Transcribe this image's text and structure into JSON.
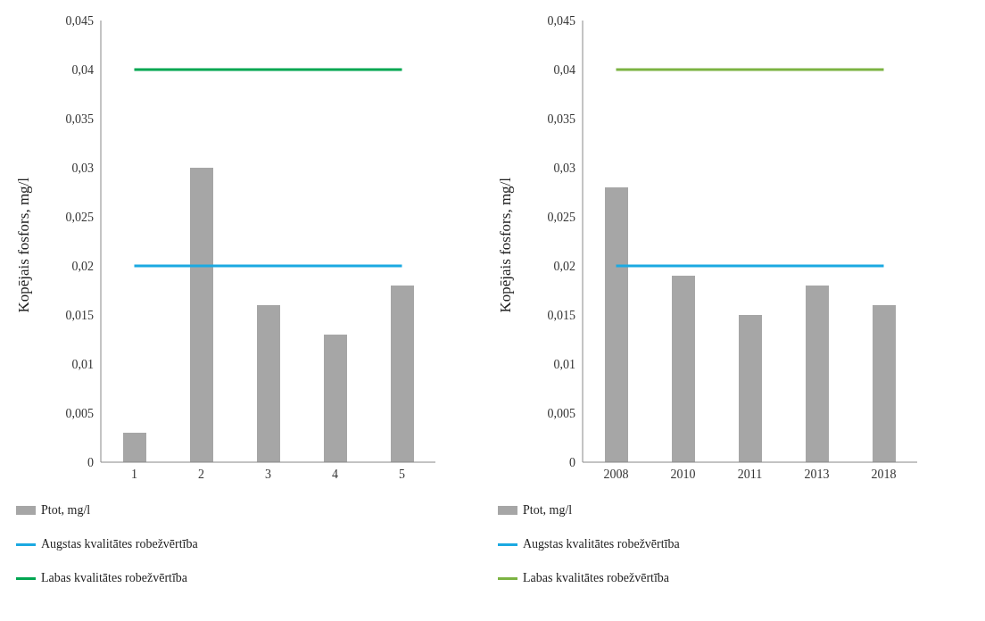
{
  "chart_data": [
    {
      "type": "bar",
      "categories": [
        "1",
        "2",
        "3",
        "4",
        "5"
      ],
      "ylabel": "Kopējais fosfors, mg/l",
      "ylim": [
        0,
        0.045
      ],
      "yticks": [
        {
          "value": 0,
          "label": "0"
        },
        {
          "value": 0.005,
          "label": "0,005"
        },
        {
          "value": 0.01,
          "label": "0,01"
        },
        {
          "value": 0.015,
          "label": "0,015"
        },
        {
          "value": 0.02,
          "label": "0,02"
        },
        {
          "value": 0.025,
          "label": "0,025"
        },
        {
          "value": 0.03,
          "label": "0,03"
        },
        {
          "value": 0.035,
          "label": "0,035"
        },
        {
          "value": 0.04,
          "label": "0,04"
        },
        {
          "value": 0.045,
          "label": "0,045"
        }
      ],
      "grid": false,
      "legend": "bottom",
      "marker": "none",
      "series": [
        {
          "name": "Ptot, mg/l",
          "color": "#a6a6a6",
          "values": [
            0.003,
            0.03,
            0.016,
            0.013,
            0.018
          ]
        },
        {
          "name": "Augstas kvalitātes robežvērtība",
          "type": "line",
          "color": "#1ba9e1",
          "values": [
            0.02,
            0.02,
            0.02,
            0.02,
            0.02
          ]
        },
        {
          "name": "Labas kvalitātes robežvērtība",
          "type": "line",
          "color": "#00a651",
          "values": [
            0.04,
            0.04,
            0.04,
            0.04,
            0.04
          ]
        }
      ]
    },
    {
      "type": "bar",
      "categories": [
        "2008",
        "2010",
        "2011",
        "2013",
        "2018"
      ],
      "ylabel": "Kopējais fosfors, mg/l",
      "ylim": [
        0,
        0.045
      ],
      "yticks": [
        {
          "value": 0,
          "label": "0"
        },
        {
          "value": 0.005,
          "label": "0,005"
        },
        {
          "value": 0.01,
          "label": "0,01"
        },
        {
          "value": 0.015,
          "label": "0,015"
        },
        {
          "value": 0.02,
          "label": "0,02"
        },
        {
          "value": 0.025,
          "label": "0,025"
        },
        {
          "value": 0.03,
          "label": "0,03"
        },
        {
          "value": 0.035,
          "label": "0,035"
        },
        {
          "value": 0.04,
          "label": "0,04"
        },
        {
          "value": 0.045,
          "label": "0,045"
        }
      ],
      "grid": false,
      "legend": "bottom",
      "marker": "none",
      "series": [
        {
          "name": "Ptot, mg/l",
          "color": "#a6a6a6",
          "values": [
            0.028,
            0.019,
            0.015,
            0.018,
            0.016
          ]
        },
        {
          "name": "Augstas kvalitātes robežvērtība",
          "type": "line",
          "color": "#1ba9e1",
          "values": [
            0.02,
            0.02,
            0.02,
            0.02,
            0.02
          ]
        },
        {
          "name": "Labas kvalitātes robežvērtība",
          "type": "line",
          "color": "#7cb342",
          "values": [
            0.04,
            0.04,
            0.04,
            0.04,
            0.04
          ]
        }
      ]
    }
  ]
}
